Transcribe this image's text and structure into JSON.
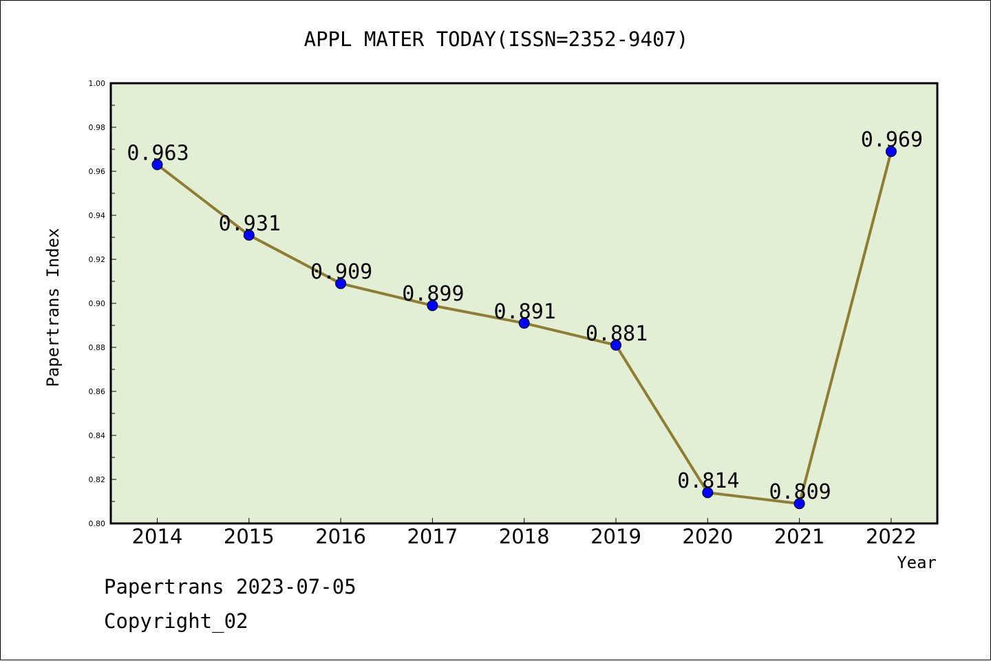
{
  "chart_data": {
    "type": "line",
    "title": "APPL MATER TODAY(ISSN=2352-9407)",
    "xlabel": "Year",
    "ylabel": "Papertrans Index",
    "categories": [
      "2014",
      "2015",
      "2016",
      "2017",
      "2018",
      "2019",
      "2020",
      "2021",
      "2022"
    ],
    "series": [
      {
        "values": [
          0.963,
          0.931,
          0.909,
          0.899,
          0.891,
          0.881,
          0.814,
          0.809,
          0.969
        ]
      }
    ],
    "data_labels": [
      "0.963",
      "0.931",
      "0.909",
      "0.899",
      "0.891",
      "0.881",
      "0.814",
      "0.809",
      "0.969"
    ],
    "ylim": [
      0.8,
      1.0
    ],
    "y_ticks": [
      "0.80",
      "0.82",
      "0.84",
      "0.86",
      "0.88",
      "0.90",
      "0.92",
      "0.94",
      "0.96",
      "0.98",
      "1.00"
    ],
    "grid": false,
    "colors": {
      "plot_background": "#e2efd5",
      "line": "#8e7d33",
      "marker": "#0000ff"
    }
  },
  "footer": {
    "date_line": "Papertrans 2023-07-05",
    "copyright": "Copyright_02"
  }
}
